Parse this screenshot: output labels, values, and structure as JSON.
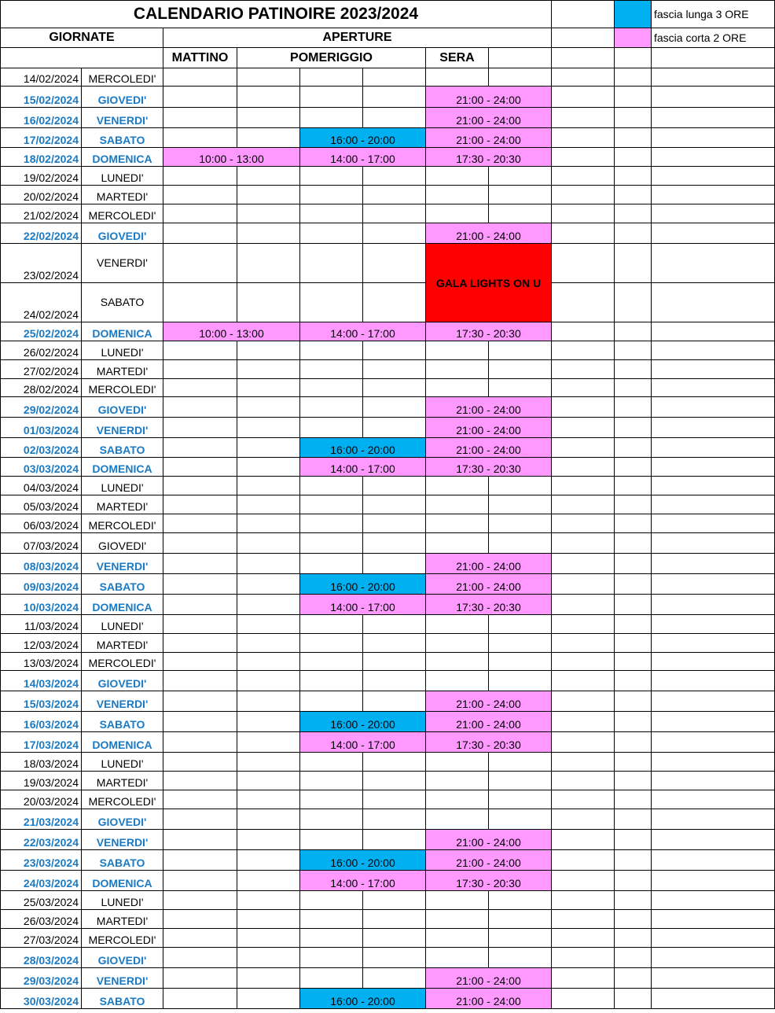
{
  "title": "CALENDARIO PATINOIRE 2023/2024",
  "headers": {
    "giornate": "GIORNATE",
    "aperture": "APERTURE",
    "mattino": "MATTINO",
    "pomeriggio": "POMERIGGIO",
    "sera": "SERA"
  },
  "legend": [
    {
      "color": "#00b0f0",
      "label": "fascia lunga 3 ORE"
    },
    {
      "color": "#ff99ff",
      "label": "fascia corta 2 ORE"
    }
  ],
  "colors": {
    "pink": "#ff99ff",
    "cyan": "#00b0f0",
    "red": "#ff0000",
    "accent_text": "#1a7ac4"
  },
  "event": "GALA LIGHTS ON U",
  "rows": [
    {
      "date": "14/02/2024",
      "day": "MERCOLEDI'",
      "highlight": false,
      "mattino": "",
      "pomeriggio": "",
      "sera": ""
    },
    {
      "date": "15/02/2024",
      "day": "GIOVEDI'",
      "highlight": true,
      "mattino": "",
      "pomeriggio": "",
      "sera": "21:00 - 24:00"
    },
    {
      "date": "16/02/2024",
      "day": "VENERDI'",
      "highlight": true,
      "mattino": "",
      "pomeriggio": "",
      "sera": "21:00 - 24:00"
    },
    {
      "date": "17/02/2024",
      "day": "SABATO",
      "highlight": true,
      "mattino": "",
      "pomeriggio": "16:00 - 20:00",
      "sera": "21:00 - 24:00"
    },
    {
      "date": "18/02/2024",
      "day": "DOMENICA",
      "highlight": true,
      "mattino": "10:00 - 13:00",
      "pomeriggio": "14:00 - 17:00",
      "sera": "17:30 - 20:30"
    },
    {
      "date": "19/02/2024",
      "day": "LUNEDI'",
      "highlight": false,
      "mattino": "",
      "pomeriggio": "",
      "sera": ""
    },
    {
      "date": "20/02/2024",
      "day": "MARTEDI'",
      "highlight": false,
      "mattino": "",
      "pomeriggio": "",
      "sera": ""
    },
    {
      "date": "21/02/2024",
      "day": "MERCOLEDI'",
      "highlight": false,
      "mattino": "",
      "pomeriggio": "",
      "sera": ""
    },
    {
      "date": "22/02/2024",
      "day": "GIOVEDI'",
      "highlight": true,
      "mattino": "",
      "pomeriggio": "",
      "sera": "21:00 - 24:00"
    },
    {
      "date": "23/02/2024",
      "day": "VENERDI'",
      "highlight": false,
      "mattino": "",
      "pomeriggio": "",
      "sera": "",
      "gala": true
    },
    {
      "date": "24/02/2024",
      "day": "SABATO",
      "highlight": false,
      "mattino": "",
      "pomeriggio": "",
      "sera": "",
      "gala": true
    },
    {
      "date": "25/02/2024",
      "day": "DOMENICA",
      "highlight": true,
      "mattino": "10:00 - 13:00",
      "pomeriggio": "14:00 - 17:00",
      "sera": "17:30 - 20:30"
    },
    {
      "date": "26/02/2024",
      "day": "LUNEDI'",
      "highlight": false,
      "mattino": "",
      "pomeriggio": "",
      "sera": ""
    },
    {
      "date": "27/02/2024",
      "day": "MARTEDI'",
      "highlight": false,
      "mattino": "",
      "pomeriggio": "",
      "sera": ""
    },
    {
      "date": "28/02/2024",
      "day": "MERCOLEDI'",
      "highlight": false,
      "mattino": "",
      "pomeriggio": "",
      "sera": ""
    },
    {
      "date": "29/02/2024",
      "day": "GIOVEDI'",
      "highlight": true,
      "mattino": "",
      "pomeriggio": "",
      "sera": "21:00 - 24:00"
    },
    {
      "date": "01/03/2024",
      "day": "VENERDI'",
      "highlight": true,
      "mattino": "",
      "pomeriggio": "",
      "sera": "21:00 - 24:00"
    },
    {
      "date": "02/03/2024",
      "day": "SABATO",
      "highlight": true,
      "mattino": "",
      "pomeriggio": "16:00 - 20:00",
      "sera": "21:00 - 24:00"
    },
    {
      "date": "03/03/2024",
      "day": "DOMENICA",
      "highlight": true,
      "mattino": "",
      "pomeriggio": "14:00 - 17:00",
      "sera": "17:30 - 20:30"
    },
    {
      "date": "04/03/2024",
      "day": "LUNEDI'",
      "highlight": false,
      "mattino": "",
      "pomeriggio": "",
      "sera": ""
    },
    {
      "date": "05/03/2024",
      "day": "MARTEDI'",
      "highlight": false,
      "mattino": "",
      "pomeriggio": "",
      "sera": ""
    },
    {
      "date": "06/03/2024",
      "day": "MERCOLEDI'",
      "highlight": false,
      "mattino": "",
      "pomeriggio": "",
      "sera": ""
    },
    {
      "date": "07/03/2024",
      "day": "GIOVEDI'",
      "highlight": false,
      "mattino": "",
      "pomeriggio": "",
      "sera": ""
    },
    {
      "date": "08/03/2024",
      "day": "VENERDI'",
      "highlight": true,
      "mattino": "",
      "pomeriggio": "",
      "sera": "21:00 - 24:00"
    },
    {
      "date": "09/03/2024",
      "day": "SABATO",
      "highlight": true,
      "mattino": "",
      "pomeriggio": "16:00 - 20:00",
      "sera": "21:00 - 24:00"
    },
    {
      "date": "10/03/2024",
      "day": "DOMENICA",
      "highlight": true,
      "mattino": "",
      "pomeriggio": "14:00 - 17:00",
      "sera": "17:30 - 20:30"
    },
    {
      "date": "11/03/2024",
      "day": "LUNEDI'",
      "highlight": false,
      "mattino": "",
      "pomeriggio": "",
      "sera": ""
    },
    {
      "date": "12/03/2024",
      "day": "MARTEDI'",
      "highlight": false,
      "mattino": "",
      "pomeriggio": "",
      "sera": ""
    },
    {
      "date": "13/03/2024",
      "day": "MERCOLEDI'",
      "highlight": false,
      "mattino": "",
      "pomeriggio": "",
      "sera": ""
    },
    {
      "date": "14/03/2024",
      "day": "GIOVEDI'",
      "highlight": true,
      "mattino": "",
      "pomeriggio": "",
      "sera": ""
    },
    {
      "date": "15/03/2024",
      "day": "VENERDI'",
      "highlight": true,
      "mattino": "",
      "pomeriggio": "",
      "sera": "21:00 - 24:00"
    },
    {
      "date": "16/03/2024",
      "day": "SABATO",
      "highlight": true,
      "mattino": "",
      "pomeriggio": "16:00 - 20:00",
      "sera": "21:00 - 24:00"
    },
    {
      "date": "17/03/2024",
      "day": "DOMENICA",
      "highlight": true,
      "mattino": "",
      "pomeriggio": "14:00 - 17:00",
      "sera": "17:30 - 20:30"
    },
    {
      "date": "18/03/2024",
      "day": "LUNEDI'",
      "highlight": false,
      "mattino": "",
      "pomeriggio": "",
      "sera": ""
    },
    {
      "date": "19/03/2024",
      "day": "MARTEDI'",
      "highlight": false,
      "mattino": "",
      "pomeriggio": "",
      "sera": ""
    },
    {
      "date": "20/03/2024",
      "day": "MERCOLEDI'",
      "highlight": false,
      "mattino": "",
      "pomeriggio": "",
      "sera": ""
    },
    {
      "date": "21/03/2024",
      "day": "GIOVEDI'",
      "highlight": true,
      "mattino": "",
      "pomeriggio": "",
      "sera": ""
    },
    {
      "date": "22/03/2024",
      "day": "VENERDI'",
      "highlight": true,
      "mattino": "",
      "pomeriggio": "",
      "sera": "21:00 - 24:00"
    },
    {
      "date": "23/03/2024",
      "day": "SABATO",
      "highlight": true,
      "mattino": "",
      "pomeriggio": "16:00 - 20:00",
      "sera": "21:00 - 24:00"
    },
    {
      "date": "24/03/2024",
      "day": "DOMENICA",
      "highlight": true,
      "mattino": "",
      "pomeriggio": "14:00 - 17:00",
      "sera": "17:30 - 20:30"
    },
    {
      "date": "25/03/2024",
      "day": "LUNEDI'",
      "highlight": false,
      "mattino": "",
      "pomeriggio": "",
      "sera": ""
    },
    {
      "date": "26/03/2024",
      "day": "MARTEDI'",
      "highlight": false,
      "mattino": "",
      "pomeriggio": "",
      "sera": ""
    },
    {
      "date": "27/03/2024",
      "day": "MERCOLEDI'",
      "highlight": false,
      "mattino": "",
      "pomeriggio": "",
      "sera": ""
    },
    {
      "date": "28/03/2024",
      "day": "GIOVEDI'",
      "highlight": true,
      "mattino": "",
      "pomeriggio": "",
      "sera": ""
    },
    {
      "date": "29/03/2024",
      "day": "VENERDI'",
      "highlight": true,
      "mattino": "",
      "pomeriggio": "",
      "sera": "21:00 - 24:00"
    },
    {
      "date": "30/03/2024",
      "day": "SABATO",
      "highlight": true,
      "mattino": "",
      "pomeriggio": "16:00 - 20:00",
      "sera": "21:00 - 24:00"
    }
  ]
}
